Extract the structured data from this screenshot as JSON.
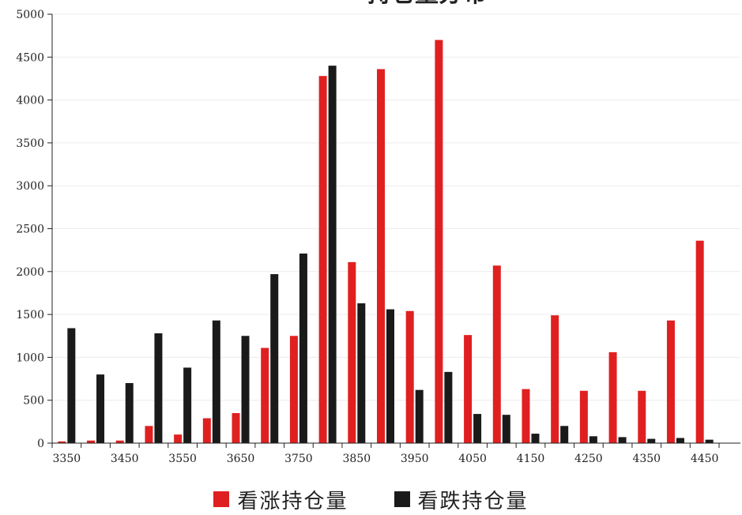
{
  "chart_data": {
    "type": "bar",
    "title": "持仓量分布",
    "categories": [
      3350,
      3400,
      3450,
      3500,
      3550,
      3600,
      3650,
      3700,
      3750,
      3800,
      3850,
      3900,
      3950,
      4000,
      4050,
      4100,
      4150,
      4200,
      4250,
      4300,
      4350,
      4400,
      4450
    ],
    "x_tick_labels": [
      "3350",
      "3450",
      "3550",
      "3650",
      "3750",
      "3850",
      "3950",
      "4050",
      "4150",
      "4250",
      "4350",
      "4450"
    ],
    "y_tick_labels": [
      "0",
      "500",
      "1000",
      "1500",
      "2000",
      "2500",
      "3000",
      "3500",
      "4000",
      "4500",
      "5000"
    ],
    "ylim": [
      0,
      5000
    ],
    "xlabel": "",
    "ylabel": "",
    "grid": true,
    "legend_position": "bottom",
    "series": [
      {
        "name": "看涨持仓量",
        "color": "#e02020",
        "values": [
          20,
          30,
          30,
          200,
          100,
          290,
          350,
          1110,
          1250,
          4280,
          2110,
          4360,
          1540,
          4700,
          1260,
          2070,
          630,
          1490,
          610,
          1060,
          610,
          1430,
          2360
        ]
      },
      {
        "name": "看跌持仓量",
        "color": "#1a1a1a",
        "values": [
          1340,
          800,
          700,
          1280,
          880,
          1430,
          1250,
          1970,
          2210,
          4400,
          1630,
          1560,
          620,
          830,
          340,
          330,
          110,
          200,
          80,
          70,
          50,
          60,
          40
        ]
      }
    ]
  }
}
